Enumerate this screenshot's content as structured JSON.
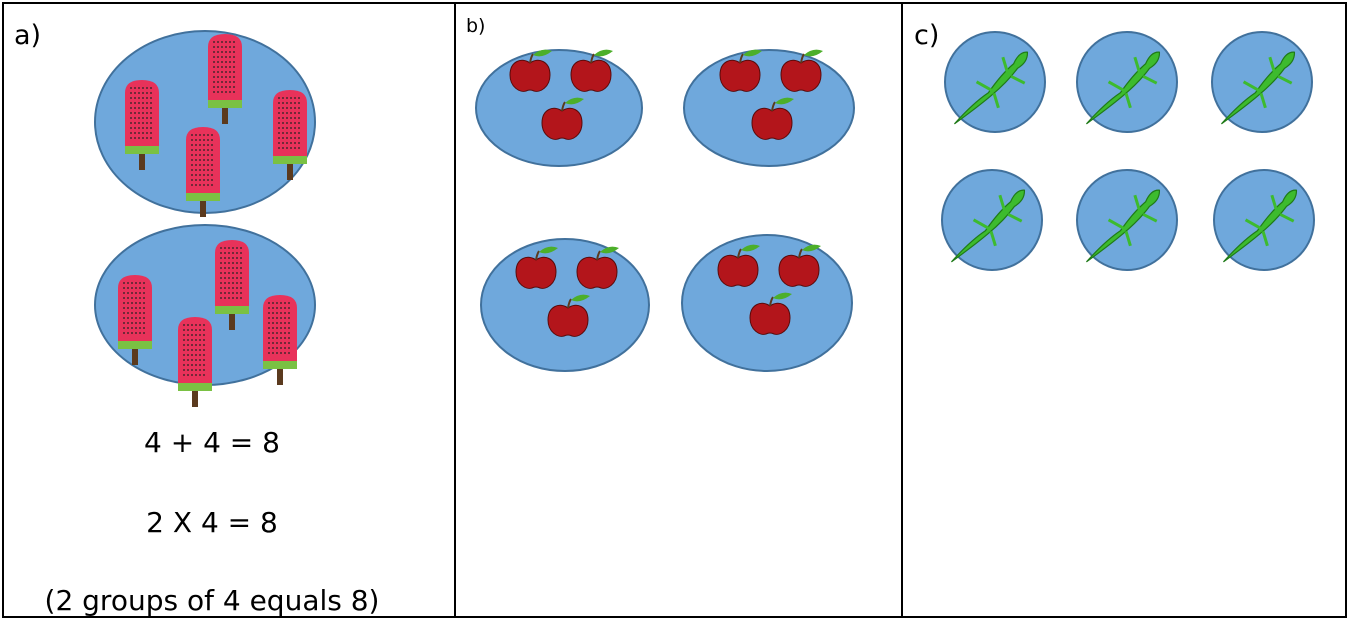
{
  "panels": [
    {
      "label": "a)",
      "lines": [
        "4 + 4 = 8",
        "2 X 4 = 8",
        "(2 groups of 4 equals 8)"
      ]
    },
    {
      "label": "b)"
    },
    {
      "label": "c)"
    }
  ]
}
